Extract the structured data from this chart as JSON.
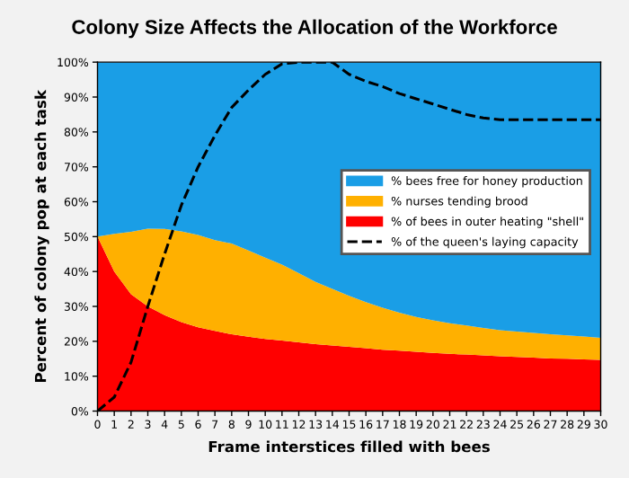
{
  "chart_data": {
    "type": "area",
    "stacked": true,
    "title": "Colony Size Affects the Allocation of the Workforce",
    "xlabel": "Frame interstices filled with bees",
    "ylabel": "Percent of colony pop at each task",
    "x": [
      0,
      1,
      2,
      3,
      4,
      5,
      6,
      7,
      8,
      9,
      10,
      11,
      12,
      13,
      14,
      15,
      16,
      17,
      18,
      19,
      20,
      21,
      22,
      23,
      24,
      25,
      26,
      27,
      28,
      29,
      30
    ],
    "series": [
      {
        "name": "% of bees in outer heating \"shell\"",
        "color": "#ff0000",
        "values": [
          50,
          40,
          33.5,
          30,
          27.5,
          25.5,
          24,
          23,
          22,
          21.3,
          20.7,
          20.2,
          19.7,
          19.2,
          18.8,
          18.4,
          18,
          17.6,
          17.3,
          17,
          16.7,
          16.4,
          16.2,
          16,
          15.7,
          15.5,
          15.3,
          15.1,
          15,
          14.8,
          14.7
        ]
      },
      {
        "name": "% nurses tending brood",
        "color": "#ffb000",
        "values": [
          0,
          10.8,
          17.9,
          22.3,
          24.7,
          26,
          26.5,
          26,
          26,
          24.7,
          23.3,
          21.8,
          19.8,
          17.8,
          16.2,
          14.6,
          13.2,
          12,
          10.9,
          10,
          9.3,
          8.8,
          8.3,
          7.8,
          7.5,
          7.3,
          7.1,
          6.9,
          6.7,
          6.6,
          6.3
        ]
      },
      {
        "name": "% bees free for honey production",
        "color": "#1a9ee6",
        "values": [
          50,
          49.2,
          48.6,
          47.7,
          47.8,
          48.5,
          49.5,
          51,
          52,
          54,
          56,
          58,
          60.5,
          63,
          65,
          67,
          68.8,
          70.4,
          71.8,
          73,
          74,
          74.8,
          75.5,
          76.2,
          76.8,
          77.2,
          77.6,
          78,
          78.3,
          78.6,
          79
        ]
      },
      {
        "name": "% of the queen's laying capacity",
        "type": "line",
        "color": "#000000",
        "line_style": "dashed",
        "values": [
          0,
          4,
          14,
          30,
          45,
          59,
          70,
          79,
          87,
          92,
          96.5,
          99.5,
          100,
          100,
          100,
          96.5,
          94.5,
          93,
          91,
          89.5,
          88,
          86.5,
          85,
          84,
          83.5,
          83.5,
          83.5,
          83.5,
          83.5,
          83.5,
          83.5
        ]
      }
    ],
    "xlim": [
      0,
      30
    ],
    "xticks": [
      0,
      1,
      2,
      3,
      4,
      5,
      6,
      7,
      8,
      9,
      10,
      11,
      12,
      13,
      14,
      15,
      16,
      17,
      18,
      19,
      20,
      21,
      22,
      23,
      24,
      25,
      26,
      27,
      28,
      29,
      30
    ],
    "ylim": [
      0,
      100
    ],
    "yticks": [
      {
        "value": 0,
        "label": "0%"
      },
      {
        "value": 10,
        "label": "10%"
      },
      {
        "value": 20,
        "label": "20%"
      },
      {
        "value": 30,
        "label": "30%"
      },
      {
        "value": 40,
        "label": "40%"
      },
      {
        "value": 50,
        "label": "50%"
      },
      {
        "value": 60,
        "label": "60%"
      },
      {
        "value": 70,
        "label": "70%"
      },
      {
        "value": 80,
        "label": "80%"
      },
      {
        "value": 90,
        "label": "90%"
      },
      {
        "value": 100,
        "label": "100%"
      }
    ],
    "legend": "center right"
  }
}
